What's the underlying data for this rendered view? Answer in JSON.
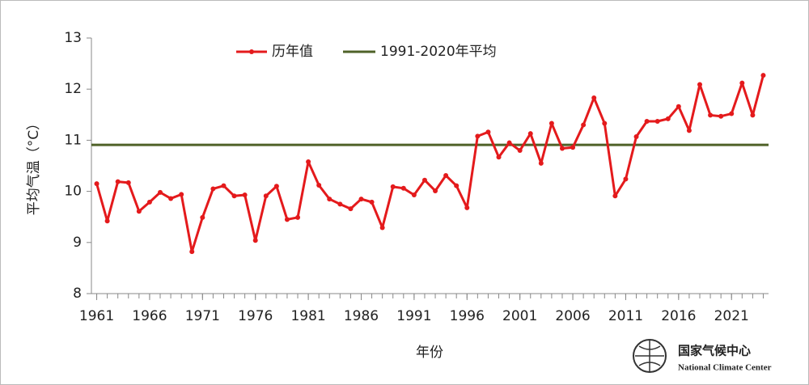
{
  "chart_data": {
    "type": "line",
    "y_label": "平均气温（°C）",
    "x_label": "年份",
    "x": [
      1961,
      1962,
      1963,
      1964,
      1965,
      1966,
      1967,
      1968,
      1969,
      1970,
      1971,
      1972,
      1973,
      1974,
      1975,
      1976,
      1977,
      1978,
      1979,
      1980,
      1981,
      1982,
      1983,
      1984,
      1985,
      1986,
      1987,
      1988,
      1989,
      1990,
      1991,
      1992,
      1993,
      1994,
      1995,
      1996,
      1997,
      1998,
      1999,
      2000,
      2001,
      2002,
      2003,
      2004,
      2005,
      2006,
      2007,
      2008,
      2009,
      2010,
      2011,
      2012,
      2013,
      2014,
      2015,
      2016,
      2017,
      2018,
      2019,
      2020,
      2021,
      2022,
      2023,
      2024
    ],
    "series": [
      {
        "name": "历年值",
        "color": "#e41a1c",
        "values": [
          10.15,
          9.42,
          10.19,
          10.17,
          9.61,
          9.79,
          9.98,
          9.86,
          9.94,
          8.82,
          9.49,
          10.05,
          10.11,
          9.91,
          9.93,
          9.04,
          9.91,
          10.1,
          9.45,
          9.49,
          10.58,
          10.12,
          9.85,
          9.75,
          9.66,
          9.85,
          9.79,
          9.29,
          10.09,
          10.06,
          9.93,
          10.22,
          10.01,
          10.31,
          10.11,
          9.68,
          11.08,
          11.16,
          10.67,
          10.95,
          10.8,
          11.13,
          10.55,
          11.33,
          10.84,
          10.86,
          11.3,
          11.83,
          11.33,
          9.91,
          10.24,
          11.07,
          11.37,
          11.37,
          11.42,
          11.66,
          11.19,
          12.09,
          11.49,
          11.47,
          11.52,
          12.12,
          11.49,
          12.27
        ]
      }
    ],
    "reference_line": {
      "name": "1991-2020年平均",
      "value": 10.91,
      "color": "#4f6228"
    },
    "xlim": [
      1960.5,
      2024.5
    ],
    "xticks": [
      1961,
      1966,
      1971,
      1976,
      1981,
      1986,
      1991,
      1996,
      2001,
      2006,
      2011,
      2016,
      2021
    ],
    "ylim": [
      8,
      13
    ],
    "yticks": [
      8,
      9,
      10,
      11,
      12,
      13
    ],
    "logo": {
      "name_cn": "国家气候中心",
      "name_en": "National Climate Center"
    }
  }
}
